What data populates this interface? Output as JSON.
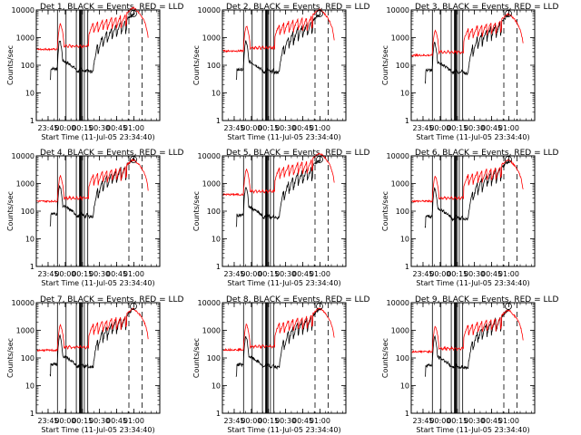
{
  "chart_data": {
    "type": "line",
    "ylabel": "Counts/sec",
    "xlabel": "Start Time (11-Jul-05 23:34:40)",
    "y_scale": "log",
    "ylim": [
      1,
      10000
    ],
    "y_ticks": [
      "1",
      "10",
      "100",
      "1000",
      "10000"
    ],
    "x_ticks": [
      "23:45",
      "00:00",
      "00:15",
      "00:30",
      "00:45",
      "01:00"
    ],
    "x_tick_minutes": [
      10.3,
      25.3,
      40.3,
      55.3,
      70.3,
      85.3
    ],
    "xlim_minutes": [
      0,
      108
    ],
    "vertical_lines_solid_minutes": [
      18.5,
      26,
      35,
      40,
      42,
      45
    ],
    "vertical_lines_thick_minutes": [
      38.5
    ],
    "vertical_lines_dashed_minutes": [
      81,
      92.5
    ],
    "panels": [
      {
        "title": "Det 1, BLACK = Events, RED = LLD",
        "events_base": 75,
        "lld_base": 380
      },
      {
        "title": "Det 2, BLACK = Events, RED = LLD",
        "events_base": 70,
        "lld_base": 330
      },
      {
        "title": "Det 3, BLACK = Events, RED = LLD",
        "events_base": 65,
        "lld_base": 230
      },
      {
        "title": "Det 4, BLACK = Events, RED = LLD",
        "events_base": 80,
        "lld_base": 230
      },
      {
        "title": "Det 5, BLACK = Events, RED = LLD",
        "events_base": 72,
        "lld_base": 400
      },
      {
        "title": "Det 6, BLACK = Events, RED = LLD",
        "events_base": 65,
        "lld_base": 230
      },
      {
        "title": "Det 7, BLACK = Events, RED = LLD",
        "events_base": 60,
        "lld_base": 190
      },
      {
        "title": "Det 8, BLACK = Events, RED = LLD",
        "events_base": 58,
        "lld_base": 200
      },
      {
        "title": "Det 9, BLACK = Events, RED = LLD",
        "events_base": 55,
        "lld_base": 170
      }
    ],
    "series": [
      {
        "name": "BLACK = Events",
        "color": "#000000"
      },
      {
        "name": "RED = LLD",
        "color": "#ff0000"
      }
    ]
  }
}
